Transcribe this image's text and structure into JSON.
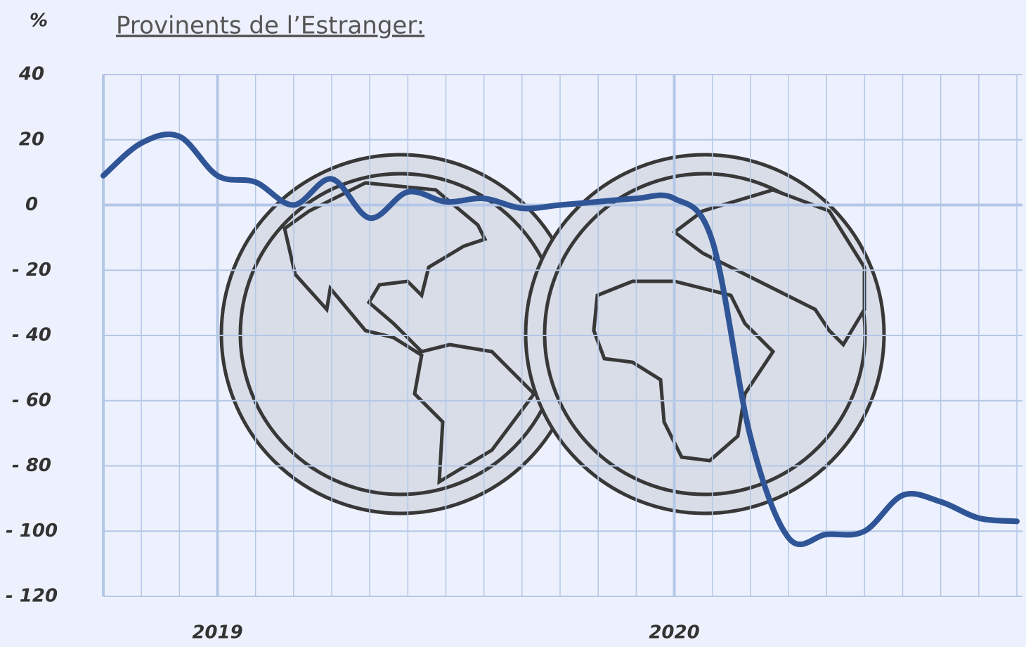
{
  "chart_data": {
    "type": "line",
    "title": "Provinents de l’Estranger:",
    "y_label": "%",
    "categories": [
      null,
      null,
      null,
      "2019",
      null,
      null,
      null,
      null,
      null,
      null,
      null,
      null,
      null,
      null,
      null,
      "2020",
      null,
      null,
      null,
      null,
      null,
      null,
      null,
      null,
      null
    ],
    "series": [
      {
        "name": "Provinents de l’Estranger",
        "color": "#2f5597",
        "values": [
          9,
          19,
          21,
          9,
          7,
          0,
          8,
          -4,
          4,
          1,
          2,
          -1,
          0,
          1,
          2,
          2,
          -11,
          -71,
          -102,
          -101,
          -100,
          -89,
          -91,
          -96,
          -97
        ]
      }
    ],
    "ylim": [
      -120,
      40
    ],
    "yticks": [
      40,
      20,
      0,
      {
        "value": -20,
        "label": "- 20"
      },
      {
        "value": -40,
        "label": "- 40"
      },
      {
        "value": -60,
        "label": "- 60"
      },
      {
        "value": -80,
        "label": "- 80"
      },
      {
        "value": -100,
        "label": "- 100"
      },
      {
        "value": -120,
        "label": "- 120"
      }
    ],
    "grid": true
  }
}
